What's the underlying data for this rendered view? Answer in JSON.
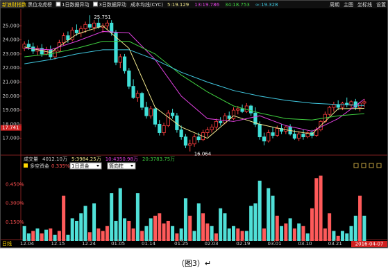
{
  "toolbar": {
    "title": "新浪财指数",
    "items": [
      "黑位龙虎榜",
      "1日数据异动",
      "3日数据异动",
      "成本均线(CYC)"
    ],
    "right": [
      "周期",
      "主图",
      "坐标线",
      "设置"
    ]
  },
  "chart_data": [
    {
      "type": "candlestick",
      "ohlc": [
        [
          23.4,
          23.9,
          23.2,
          23.7
        ],
        [
          23.7,
          24.0,
          23.3,
          23.5
        ],
        [
          23.5,
          23.8,
          23.0,
          23.2
        ],
        [
          23.2,
          23.6,
          22.9,
          23.4
        ],
        [
          23.4,
          23.7,
          22.8,
          23.0
        ],
        [
          23.0,
          23.5,
          22.9,
          23.3
        ],
        [
          23.3,
          23.6,
          22.6,
          22.8
        ],
        [
          22.8,
          23.4,
          22.6,
          23.2
        ],
        [
          23.2,
          24.0,
          23.1,
          23.8
        ],
        [
          23.8,
          24.5,
          23.6,
          24.3
        ],
        [
          24.3,
          24.6,
          23.8,
          24.0
        ],
        [
          24.0,
          24.9,
          23.9,
          24.7
        ],
        [
          24.7,
          25.1,
          24.3,
          24.5
        ],
        [
          24.5,
          25.0,
          24.2,
          24.8
        ],
        [
          24.8,
          25.3,
          24.5,
          25.1
        ],
        [
          25.1,
          25.751,
          24.7,
          24.9
        ],
        [
          24.9,
          25.4,
          24.6,
          25.2
        ],
        [
          25.2,
          25.5,
          24.8,
          24.9
        ],
        [
          24.9,
          25.2,
          24.5,
          25.0
        ],
        [
          25.0,
          25.4,
          24.7,
          25.2
        ],
        [
          25.2,
          25.4,
          24.3,
          24.5
        ],
        [
          24.5,
          24.7,
          22.2,
          22.4
        ],
        [
          22.4,
          23.0,
          22.0,
          22.8
        ],
        [
          22.8,
          23.0,
          21.6,
          21.8
        ],
        [
          21.8,
          22.0,
          20.5,
          20.7
        ],
        [
          20.7,
          21.2,
          19.8,
          19.9
        ],
        [
          19.9,
          20.4,
          19.6,
          20.2
        ],
        [
          20.2,
          20.3,
          19.0,
          19.2
        ],
        [
          19.2,
          19.6,
          18.4,
          18.6
        ],
        [
          18.6,
          19.3,
          18.4,
          19.1
        ],
        [
          19.1,
          19.2,
          17.8,
          18.0
        ],
        [
          18.0,
          18.3,
          17.2,
          17.4
        ],
        [
          17.4,
          18.1,
          17.2,
          17.9
        ],
        [
          17.9,
          19.0,
          17.8,
          18.8
        ],
        [
          18.8,
          19.1,
          18.4,
          18.6
        ],
        [
          18.6,
          18.8,
          17.4,
          17.6
        ],
        [
          17.6,
          17.9,
          16.9,
          17.1
        ],
        [
          17.1,
          17.3,
          16.3,
          16.5
        ],
        [
          16.5,
          16.9,
          16.064,
          16.6
        ],
        [
          16.6,
          17.3,
          16.4,
          17.1
        ],
        [
          17.1,
          17.4,
          16.7,
          16.9
        ],
        [
          16.9,
          17.6,
          16.8,
          17.4
        ],
        [
          17.4,
          17.8,
          17.1,
          17.6
        ],
        [
          17.6,
          18.0,
          17.4,
          17.8
        ],
        [
          17.8,
          18.4,
          17.6,
          18.2
        ],
        [
          18.2,
          18.5,
          17.9,
          18.1
        ],
        [
          18.1,
          18.8,
          18.0,
          18.6
        ],
        [
          18.6,
          18.9,
          18.2,
          18.4
        ],
        [
          18.4,
          19.2,
          18.3,
          19.0
        ],
        [
          19.0,
          19.3,
          18.7,
          19.1
        ],
        [
          19.1,
          19.4,
          18.8,
          18.9
        ],
        [
          18.9,
          19.5,
          18.8,
          19.3
        ],
        [
          19.3,
          19.4,
          18.6,
          18.8
        ],
        [
          18.8,
          19.2,
          17.8,
          18.0
        ],
        [
          18.0,
          18.2,
          16.9,
          17.1
        ],
        [
          17.1,
          17.4,
          16.5,
          16.8
        ],
        [
          16.8,
          17.6,
          16.7,
          17.4
        ],
        [
          17.4,
          17.8,
          17.0,
          17.2
        ],
        [
          17.2,
          17.9,
          17.1,
          17.7
        ],
        [
          17.7,
          18.0,
          17.3,
          17.5
        ],
        [
          17.5,
          17.9,
          17.3,
          17.8
        ],
        [
          17.8,
          18.0,
          17.2,
          17.3
        ],
        [
          17.3,
          17.6,
          16.9,
          17.0
        ],
        [
          17.0,
          17.5,
          16.8,
          17.3
        ],
        [
          17.3,
          17.6,
          16.9,
          17.1
        ],
        [
          17.1,
          17.5,
          17.0,
          17.4
        ],
        [
          17.4,
          17.6,
          17.0,
          17.2
        ],
        [
          17.2,
          17.8,
          17.1,
          17.6
        ],
        [
          17.6,
          18.3,
          17.5,
          18.2
        ],
        [
          18.2,
          18.9,
          18.1,
          18.7
        ],
        [
          18.7,
          19.3,
          18.6,
          19.2
        ],
        [
          19.2,
          19.6,
          18.9,
          19.4
        ],
        [
          19.4,
          19.7,
          19.0,
          19.2
        ],
        [
          19.2,
          19.6,
          19.0,
          19.5
        ],
        [
          19.5,
          19.9,
          19.2,
          19.4
        ],
        [
          19.4,
          19.7,
          19.1,
          19.6
        ],
        [
          19.6,
          19.8,
          19.0,
          19.2
        ],
        [
          19.2,
          19.6,
          18.9,
          19.5
        ],
        [
          19.5,
          19.8,
          19.2,
          19.6
        ]
      ],
      "up_color": "#ff4040",
      "down_color": "#40e0d8",
      "ylim": [
        15.9,
        26.1
      ],
      "yticks": [
        {
          "value": 25,
          "label": "25.000"
        },
        {
          "value": 24,
          "label": "24.000"
        },
        {
          "value": 23,
          "label": "23.000"
        },
        {
          "value": 22,
          "label": "22.000"
        },
        {
          "value": 21,
          "label": "21.000"
        },
        {
          "value": 20,
          "label": "20.000"
        },
        {
          "value": 19,
          "label": "19.000"
        },
        {
          "value": 18,
          "label": "18.000"
        },
        {
          "value": 17,
          "label": "17.000"
        }
      ],
      "price_marker": {
        "value": 17.741
      },
      "annotations": [
        {
          "x": 15,
          "value": 25.751
        },
        {
          "x": 38,
          "value": 16.064
        }
      ],
      "x": [
        0,
        6,
        12,
        18,
        24,
        30,
        36,
        42,
        48,
        54,
        60,
        66,
        72,
        78
      ],
      "series": [
        {
          "label": "5:19.129",
          "color": "#f0e68c",
          "values": [
            23.5,
            23.1,
            24.4,
            25.0,
            23.4,
            19.2,
            17.8,
            17.0,
            18.6,
            18.0,
            17.6,
            17.3,
            19.1,
            19.129
          ]
        },
        {
          "label": "13:19.786",
          "color": "#e040e0",
          "values": [
            23.4,
            23.3,
            23.9,
            24.6,
            24.5,
            22.6,
            20.0,
            18.4,
            18.2,
            18.6,
            17.9,
            17.5,
            18.4,
            19.786
          ]
        },
        {
          "label": "34:18.753",
          "color": "#40d040",
          "values": [
            22.8,
            23.0,
            23.4,
            23.9,
            23.9,
            23.0,
            21.5,
            20.3,
            19.3,
            18.8,
            18.4,
            18.3,
            18.6,
            18.753
          ]
        },
        {
          "label": "∞:19.328",
          "color": "#40c8e0",
          "values": [
            22.3,
            22.6,
            23.0,
            23.3,
            23.3,
            22.6,
            21.7,
            21.0,
            20.4,
            20.0,
            19.7,
            19.5,
            19.4,
            19.328
          ]
        }
      ]
    },
    {
      "type": "bar",
      "volume_line": [
        "成交量",
        "4012.10万",
        "5:3984.25万",
        "10:4350.98万",
        "20:3783.75万"
      ],
      "title": "多空资金",
      "current": "0.335%",
      "selects": [
        "1日资金",
        "筒向柱"
      ],
      "values": [
        0.12,
        0.06,
        0.08,
        0.1,
        0.06,
        0.09,
        0.1,
        0.05,
        0.08,
        0.36,
        0.05,
        0.18,
        0.16,
        0.22,
        0.28,
        0.07,
        0.3,
        0.1,
        0.08,
        0.12,
        0.38,
        0.16,
        0.42,
        0.18,
        0.16,
        0.1,
        0.38,
        0.08,
        0.12,
        0.18,
        0.2,
        0.22,
        0.14,
        0.16,
        0.12,
        0.06,
        0.1,
        0.34,
        0.2,
        0.08,
        0.3,
        0.22,
        0.14,
        0.12,
        0.06,
        0.26,
        0.22,
        0.1,
        0.12,
        0.1,
        0.08,
        0.08,
        0.28,
        0.3,
        0.48,
        0.1,
        0.42,
        0.36,
        0.2,
        0.12,
        0.14,
        0.18,
        0.1,
        0.14,
        0.12,
        0.06,
        0.26,
        0.5,
        0.52,
        0.1,
        0.22,
        0.08,
        0.04,
        0.08,
        0.06,
        0.12,
        0.2,
        0.36,
        0.2
      ],
      "up": [
        0,
        0,
        1,
        0,
        1,
        0,
        1,
        0,
        1,
        1,
        0,
        0,
        0,
        0,
        0,
        1,
        0,
        1,
        1,
        1,
        0,
        0,
        0,
        0,
        1,
        1,
        0,
        1,
        0,
        0,
        1,
        1,
        1,
        1,
        0,
        1,
        0,
        0,
        1,
        0,
        0,
        1,
        1,
        0,
        1,
        0,
        0,
        0,
        0,
        1,
        1,
        0,
        0,
        0,
        0,
        1,
        0,
        0,
        1,
        0,
        1,
        0,
        1,
        0,
        1,
        0,
        1,
        1,
        1,
        1,
        1,
        0,
        1,
        0,
        0,
        0,
        0,
        1,
        0
      ],
      "up_color": "#ff5a5a",
      "down_color": "#50e0d8",
      "ylim": [
        0,
        0.54
      ],
      "yticks": [
        {
          "value": 0.45,
          "label": "0.450%"
        },
        {
          "value": 0.3,
          "label": "0.300%"
        },
        {
          "value": 0.15,
          "label": "0.150%"
        }
      ],
      "period": "日线",
      "x_ticks": [
        {
          "value": 0.6,
          "label": "12.04"
        },
        {
          "value": 7.7,
          "label": "12.15"
        },
        {
          "value": 14.8,
          "label": "12.24"
        },
        {
          "value": 21.5,
          "label": "01.05"
        },
        {
          "value": 28.5,
          "label": "01.14"
        },
        {
          "value": 36,
          "label": "01.25"
        },
        {
          "value": 42.9,
          "label": "02.03"
        },
        {
          "value": 50.2,
          "label": "02.19"
        },
        {
          "value": 57.4,
          "label": "03.01"
        },
        {
          "value": 64.4,
          "label": "03.10"
        },
        {
          "value": 71.3,
          "label": "03.21"
        }
      ],
      "last_date": "2016-04-07"
    }
  ],
  "caption": "（图3）↵"
}
